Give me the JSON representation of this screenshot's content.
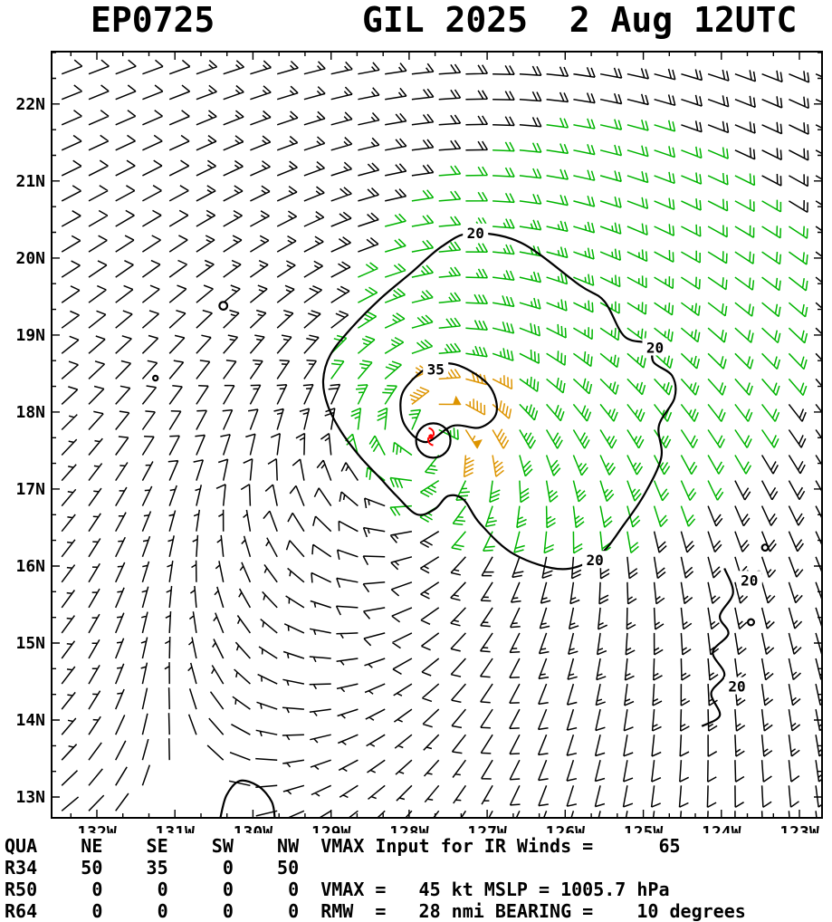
{
  "header": {
    "storm_id": "EP0725",
    "title": "GIL 2025  2 Aug 12UTC"
  },
  "footer": {
    "lines": [
      "QUA    NE    SE    SW    NW  VMAX Input for IR Winds =      65",
      "R34    50    35     0    50",
      "R50     0     0     0     0  VMAX =   45 kt MSLP = 1005.7 hPa",
      "R64     0     0     0     0  RMW  =   28 nmi BEARING =    10 degrees"
    ]
  },
  "chart_data": {
    "type": "wind-barb-map",
    "title": "EP0725 GIL 2025 2 Aug 12UTC",
    "storm": {
      "id": "EP0725",
      "name": "GIL",
      "year": "2025",
      "valid": "2 Aug 12UTC",
      "vmax_kt": 45,
      "mslp_hpa": 1005.7,
      "rmw_nmi": 28,
      "bearing_deg": 10,
      "vmax_input_ir": 65
    },
    "wind_radii": {
      "quadrants": [
        "NE",
        "SE",
        "SW",
        "NW"
      ],
      "R34": [
        50,
        35,
        0,
        50
      ],
      "R50": [
        0,
        0,
        0,
        0
      ],
      "R64": [
        0,
        0,
        0,
        0
      ]
    },
    "map": {
      "lon_min": -132.58,
      "lon_max": -122.71,
      "lat_min": 12.73,
      "lat_max": 22.68
    },
    "x_ticks": [
      {
        "label": "132W",
        "lon": -132
      },
      {
        "label": "131W",
        "lon": -131
      },
      {
        "label": "130W",
        "lon": -130
      },
      {
        "label": "129W",
        "lon": -129
      },
      {
        "label": "128W",
        "lon": -128
      },
      {
        "label": "127W",
        "lon": -127
      },
      {
        "label": "126W",
        "lon": -126
      },
      {
        "label": "125W",
        "lon": -125
      },
      {
        "label": "124W",
        "lon": -124
      },
      {
        "label": "123W",
        "lon": -123
      }
    ],
    "y_ticks": [
      {
        "label": "13N",
        "lat": 13
      },
      {
        "label": "14N",
        "lat": 14
      },
      {
        "label": "15N",
        "lat": 15
      },
      {
        "label": "16N",
        "lat": 16
      },
      {
        "label": "17N",
        "lat": 17
      },
      {
        "label": "18N",
        "lat": 18
      },
      {
        "label": "19N",
        "lat": 19
      },
      {
        "label": "20N",
        "lat": 20
      },
      {
        "label": "21N",
        "lat": 21
      },
      {
        "label": "22N",
        "lat": 22
      }
    ],
    "barb_grid": {
      "lon_start": -132.45,
      "lon_step": 0.345,
      "cols": 29,
      "lat_start": 12.82,
      "lat_step": 0.33,
      "rows": 30
    },
    "wind_model": {
      "center": {
        "lon": -127.72,
        "lat": 17.68
      },
      "vmax_kt": 45,
      "rmax_deg": 0.45,
      "decay_exp": 0.6,
      "asym_kt": 4,
      "background": {
        "u": -7,
        "v": 1.5
      },
      "inflow_deg": 15
    },
    "speed_colors": [
      {
        "min": 35,
        "color": "#dd9400"
      },
      {
        "min": 20,
        "color": "#00b400"
      },
      {
        "min": 0,
        "color": "#000000"
      }
    ],
    "contours": [
      {
        "label": "20",
        "closed": true,
        "points": [
          [
            -127.21,
            20.32
          ],
          [
            -126.57,
            20.2
          ],
          [
            -125.82,
            19.65
          ],
          [
            -125.5,
            19.44
          ],
          [
            -125.24,
            18.98
          ],
          [
            -124.91,
            18.88
          ],
          [
            -124.87,
            18.65
          ],
          [
            -124.63,
            18.47
          ],
          [
            -124.6,
            18.18
          ],
          [
            -124.8,
            17.82
          ],
          [
            -124.77,
            17.41
          ],
          [
            -124.98,
            16.94
          ],
          [
            -125.24,
            16.55
          ],
          [
            -125.56,
            16.15
          ],
          [
            -126.03,
            15.96
          ],
          [
            -126.65,
            16.15
          ],
          [
            -127.09,
            16.55
          ],
          [
            -127.3,
            16.86
          ],
          [
            -127.5,
            16.91
          ],
          [
            -127.67,
            16.74
          ],
          [
            -127.9,
            16.67
          ],
          [
            -128.16,
            16.91
          ],
          [
            -128.37,
            17.14
          ],
          [
            -128.62,
            17.41
          ],
          [
            -128.86,
            17.73
          ],
          [
            -129.04,
            18.08
          ],
          [
            -129.1,
            18.41
          ],
          [
            -129.01,
            18.74
          ],
          [
            -128.74,
            19.09
          ],
          [
            -128.37,
            19.47
          ],
          [
            -127.96,
            19.82
          ],
          [
            -127.58,
            20.15
          ]
        ],
        "labels_at": [
          [
            -127.15,
            20.33
          ],
          [
            -124.85,
            18.84
          ],
          [
            -125.62,
            16.08
          ]
        ]
      },
      {
        "label": "35",
        "closed": true,
        "points": [
          [
            -128.02,
            18.35
          ],
          [
            -127.73,
            18.59
          ],
          [
            -127.38,
            18.61
          ],
          [
            -126.98,
            18.35
          ],
          [
            -126.88,
            18.0
          ],
          [
            -127.09,
            17.8
          ],
          [
            -127.44,
            17.82
          ],
          [
            -127.79,
            17.61
          ],
          [
            -128.05,
            17.82
          ],
          [
            -128.11,
            18.12
          ]
        ],
        "labels_at": [
          [
            -127.66,
            18.56
          ]
        ]
      },
      {
        "label": "20",
        "closed": false,
        "points": [
          [
            -123.96,
            15.97
          ],
          [
            -123.85,
            15.65
          ],
          [
            -124.02,
            15.35
          ],
          [
            -123.91,
            15.12
          ],
          [
            -124.11,
            14.88
          ],
          [
            -123.96,
            14.59
          ],
          [
            -124.13,
            14.35
          ],
          [
            -124.02,
            14.06
          ],
          [
            -124.25,
            13.92
          ]
        ],
        "labels_at": [
          [
            -123.64,
            15.82
          ],
          [
            -123.8,
            14.44
          ]
        ]
      },
      {
        "label": "",
        "closed": false,
        "points": [
          [
            -130.42,
            12.72
          ],
          [
            -130.34,
            13.02
          ],
          [
            -130.17,
            13.21
          ],
          [
            -129.93,
            13.14
          ],
          [
            -129.76,
            12.94
          ],
          [
            -129.72,
            12.72
          ]
        ],
        "labels_at": []
      }
    ],
    "features": {
      "circles": [
        {
          "lon": -127.69,
          "lat": 17.63,
          "r_deg": 0.22
        },
        {
          "lon": -130.38,
          "lat": 19.38,
          "r_deg": 0.05
        },
        {
          "lon": -131.25,
          "lat": 18.44,
          "r_deg": 0.03
        },
        {
          "lon": -123.44,
          "lat": 16.24,
          "r_deg": 0.04
        },
        {
          "lon": -123.52,
          "lat": 15.9,
          "r_deg": 0.03
        },
        {
          "lon": -123.62,
          "lat": 15.27,
          "r_deg": 0.04
        }
      ]
    },
    "storm_marker": {
      "lon": -127.72,
      "lat": 17.68,
      "color": "#ff0000"
    }
  }
}
